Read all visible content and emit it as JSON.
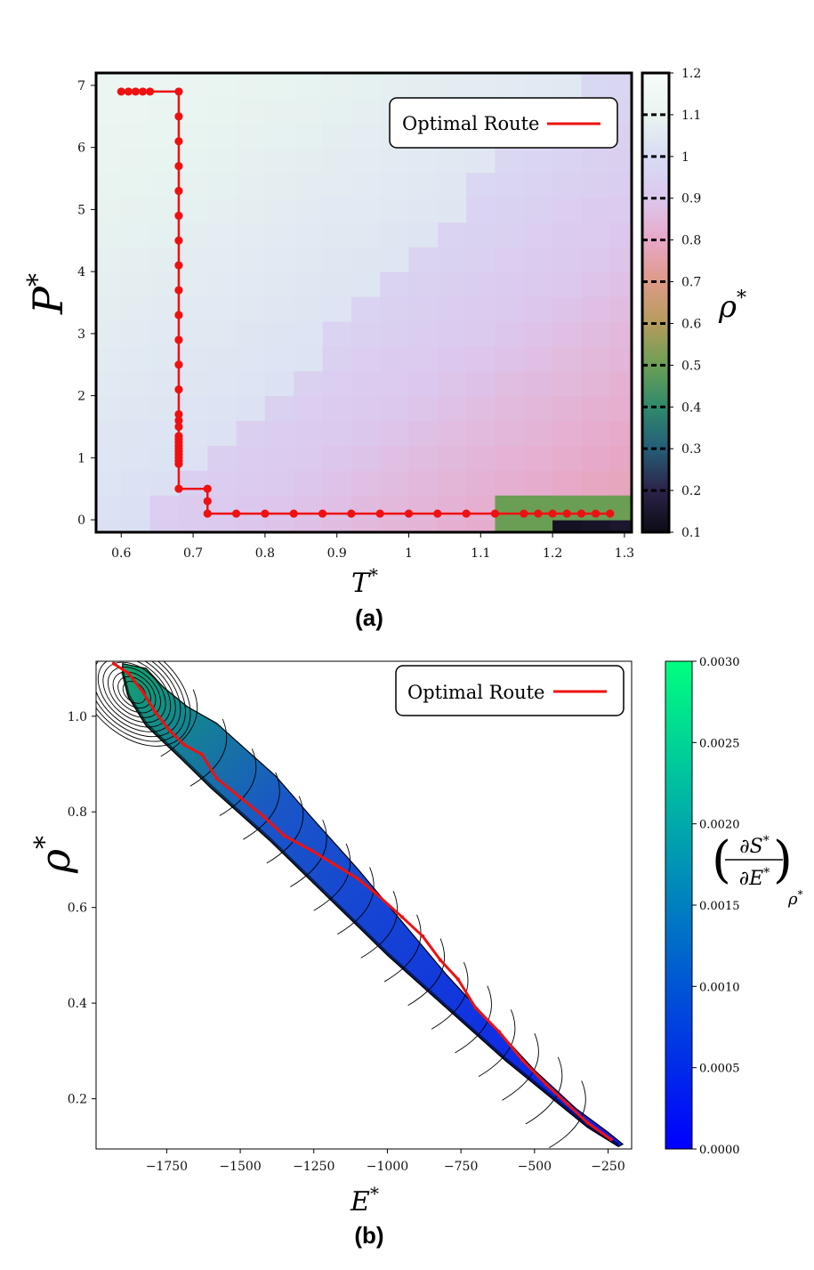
{
  "chart_data": [
    {
      "type": "heatmap",
      "panel_label": "(a)",
      "xlabel": "T",
      "xlabel_sup": "*",
      "ylabel": "P",
      "ylabel_sup": "*",
      "xlim": [
        0.565,
        1.31
      ],
      "ylim": [
        -0.2,
        7.2
      ],
      "x_ticks": [
        "0.6",
        "0.7",
        "0.8",
        "0.9",
        "1",
        "1.1",
        "1.2",
        "1.3"
      ],
      "y_ticks": [
        "0",
        "1",
        "2",
        "3",
        "4",
        "5",
        "6",
        "7"
      ],
      "colorbar": {
        "label": "ρ",
        "label_sup": "*",
        "ticks": [
          "0.1",
          "0.2",
          "0.3",
          "0.4",
          "0.5",
          "0.6",
          "0.7",
          "0.8",
          "0.9",
          "1",
          "1.1",
          "1.2"
        ],
        "range": [
          0.1,
          1.2
        ],
        "colors": [
          "#0b0b14",
          "#2c2348",
          "#255d78",
          "#2f8a6d",
          "#6b9e55",
          "#b59c5c",
          "#dd9a88",
          "#e8a8c8",
          "#dcc8ee",
          "#d8dcf4",
          "#e8f4f0",
          "#f8fdfa"
        ]
      },
      "legend": {
        "label": "Optimal Route",
        "position": "top-right"
      },
      "route_color": "#ee1111",
      "series": [
        {
          "name": "Optimal Route",
          "points": [
            [
              0.6,
              6.9
            ],
            [
              0.61,
              6.9
            ],
            [
              0.62,
              6.9
            ],
            [
              0.63,
              6.9
            ],
            [
              0.64,
              6.9
            ],
            [
              0.68,
              6.9
            ],
            [
              0.68,
              6.5
            ],
            [
              0.68,
              6.1
            ],
            [
              0.68,
              5.7
            ],
            [
              0.68,
              5.3
            ],
            [
              0.68,
              4.9
            ],
            [
              0.68,
              4.5
            ],
            [
              0.68,
              4.1
            ],
            [
              0.68,
              3.7
            ],
            [
              0.68,
              3.3
            ],
            [
              0.68,
              2.9
            ],
            [
              0.68,
              2.5
            ],
            [
              0.68,
              2.1
            ],
            [
              0.68,
              1.7
            ],
            [
              0.68,
              1.6
            ],
            [
              0.68,
              1.5
            ],
            [
              0.68,
              1.35
            ],
            [
              0.68,
              1.3
            ],
            [
              0.68,
              1.25
            ],
            [
              0.68,
              1.2
            ],
            [
              0.68,
              1.15
            ],
            [
              0.68,
              1.1
            ],
            [
              0.68,
              1.05
            ],
            [
              0.68,
              1.0
            ],
            [
              0.68,
              0.95
            ],
            [
              0.68,
              0.9
            ],
            [
              0.68,
              0.5
            ],
            [
              0.72,
              0.5
            ],
            [
              0.72,
              0.3
            ],
            [
              0.72,
              0.1
            ],
            [
              0.76,
              0.1
            ],
            [
              0.8,
              0.1
            ],
            [
              0.84,
              0.1
            ],
            [
              0.88,
              0.1
            ],
            [
              0.92,
              0.1
            ],
            [
              0.96,
              0.1
            ],
            [
              1.0,
              0.1
            ],
            [
              1.04,
              0.1
            ],
            [
              1.08,
              0.1
            ],
            [
              1.12,
              0.1
            ],
            [
              1.16,
              0.1
            ],
            [
              1.18,
              0.1
            ],
            [
              1.2,
              0.1
            ],
            [
              1.22,
              0.1
            ],
            [
              1.24,
              0.1
            ],
            [
              1.26,
              0.1
            ],
            [
              1.28,
              0.1
            ]
          ]
        }
      ]
    },
    {
      "type": "heatmap",
      "panel_label": "(b)",
      "xlabel": "E",
      "xlabel_sup": "*",
      "ylabel": "ρ",
      "ylabel_sup": "*",
      "xlim": [
        -1990,
        -170
      ],
      "ylim": [
        0.095,
        1.115
      ],
      "x_ticks": [
        {
          "value": -1750,
          "label": "−1750"
        },
        {
          "value": -1500,
          "label": "−1500"
        },
        {
          "value": -1250,
          "label": "−1250"
        },
        {
          "value": -1000,
          "label": "−1000"
        },
        {
          "value": -750,
          "label": "−750"
        },
        {
          "value": -500,
          "label": "−500"
        },
        {
          "value": -250,
          "label": "−250"
        }
      ],
      "y_ticks": [
        {
          "value": 0.2,
          "label": "0.2"
        },
        {
          "value": 0.4,
          "label": "0.4"
        },
        {
          "value": 0.6,
          "label": "0.6"
        },
        {
          "value": 0.8,
          "label": "0.8"
        },
        {
          "value": 1.0,
          "label": "1.0"
        }
      ],
      "colorbar": {
        "label": "(∂S*/∂E*)",
        "label_num": "∂S",
        "label_den": "∂E",
        "label_sub": "ρ",
        "sup": "*",
        "ticks": [
          "0.0000",
          "0.0005",
          "0.0010",
          "0.0015",
          "0.0020",
          "0.0025",
          "0.0030"
        ],
        "range": [
          0.0,
          0.003
        ],
        "colors": [
          "#0000ff",
          "#00ff80"
        ]
      },
      "legend": {
        "label": "Optimal Route",
        "position": "top-right"
      },
      "route_color": "#ee1111",
      "series": [
        {
          "name": "Optimal Route",
          "points": [
            [
              -1930,
              1.11
            ],
            [
              -1880,
              1.09
            ],
            [
              -1830,
              1.05
            ],
            [
              -1790,
              1.01
            ],
            [
              -1740,
              0.97
            ],
            [
              -1690,
              0.94
            ],
            [
              -1630,
              0.92
            ],
            [
              -1580,
              0.87
            ],
            [
              -1500,
              0.83
            ],
            [
              -1420,
              0.79
            ],
            [
              -1350,
              0.75
            ],
            [
              -1260,
              0.72
            ],
            [
              -1180,
              0.69
            ],
            [
              -1100,
              0.66
            ],
            [
              -1040,
              0.63
            ],
            [
              -950,
              0.58
            ],
            [
              -880,
              0.54
            ],
            [
              -820,
              0.49
            ],
            [
              -760,
              0.45
            ],
            [
              -700,
              0.39
            ],
            [
              -620,
              0.34
            ],
            [
              -540,
              0.28
            ],
            [
              -460,
              0.23
            ],
            [
              -390,
              0.19
            ],
            [
              -320,
              0.15
            ],
            [
              -240,
              0.115
            ]
          ]
        }
      ]
    }
  ]
}
